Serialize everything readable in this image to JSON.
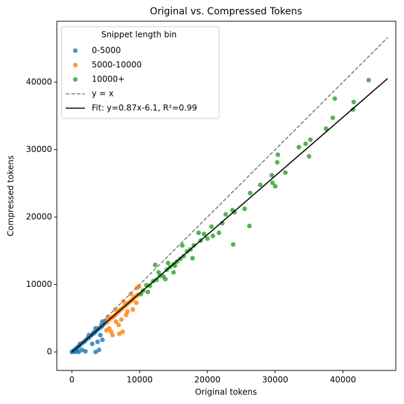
{
  "chart_data": {
    "type": "scatter",
    "title": "Original vs. Compressed Tokens",
    "x_label": "Original tokens",
    "y_label": "Compressed tokens",
    "xlim": [
      -2222,
      47800
    ],
    "ylim": [
      -2740,
      49030
    ],
    "xticks": [
      0,
      10000,
      20000,
      30000,
      40000
    ],
    "yticks": [
      0,
      10000,
      20000,
      30000,
      40000
    ],
    "legend_title": "Snippet length bin",
    "legend_position": "upper left",
    "series": [
      {
        "name": "0-5000",
        "color": "#1f77b4",
        "type": "scatter",
        "x": [
          0,
          100,
          200,
          300,
          500,
          800,
          1000,
          1200,
          1500,
          1800,
          2000,
          2300,
          2500,
          2800,
          3000,
          3300,
          3500,
          3800,
          4000,
          4300,
          4500,
          4800,
          1000,
          1500,
          2000,
          3500,
          4000,
          3000,
          4500,
          4200,
          2500,
          3500,
          4500,
          500,
          800,
          4900,
          1200,
          3800
        ],
        "values": [
          0,
          50,
          150,
          200,
          400,
          700,
          800,
          1000,
          1300,
          1500,
          1700,
          2000,
          2100,
          2400,
          2600,
          2800,
          3000,
          3300,
          3500,
          3700,
          3900,
          4200,
          0,
          300,
          100,
          0,
          300,
          1200,
          1800,
          2500,
          2500,
          3500,
          4500,
          0,
          200,
          4600,
          1200,
          1500
        ]
      },
      {
        "name": "5000-10000",
        "color": "#ff7f0e",
        "type": "scatter",
        "x": [
          5100,
          5200,
          5500,
          5800,
          6000,
          6200,
          6500,
          6800,
          7000,
          7200,
          7500,
          7800,
          8000,
          8200,
          8500,
          8800,
          9000,
          9200,
          9500,
          9800,
          6000,
          7000,
          7500,
          5500,
          6500,
          8000,
          9000,
          9500,
          5300,
          6400,
          7600,
          8700,
          9600,
          9900,
          8200,
          6900,
          5800,
          7300
        ],
        "values": [
          3200,
          4400,
          4800,
          5000,
          5200,
          5300,
          5600,
          5900,
          6100,
          6300,
          6500,
          6800,
          7000,
          7200,
          7400,
          7600,
          7800,
          8100,
          8300,
          8500,
          2500,
          2700,
          3000,
          3500,
          4500,
          5500,
          6300,
          7300,
          5200,
          6300,
          7500,
          8600,
          9500,
          9700,
          6000,
          4000,
          3000,
          4800
        ]
      },
      {
        "name": "10000+",
        "color": "#2ca02c",
        "type": "scatter",
        "x": [
          43800,
          41600,
          41500,
          38800,
          38500,
          37500,
          35200,
          34500,
          33500,
          35000,
          31500,
          30400,
          30300,
          29600,
          29500,
          30000,
          27800,
          26300,
          25500,
          23700,
          24000,
          23800,
          26200,
          22200,
          22700,
          20600,
          21700,
          18700,
          10500,
          11000,
          11500,
          12000,
          12500,
          13000,
          13500,
          14000,
          14500,
          15000,
          15500,
          16000,
          16500,
          17000,
          17500,
          18000,
          19000,
          20000,
          15200,
          16300,
          12300,
          13800,
          15000,
          17800,
          19500,
          20800,
          11200,
          10200,
          12800,
          14200
        ],
        "values": [
          40300,
          37060,
          35940,
          37560,
          34720,
          33100,
          31470,
          30860,
          30360,
          29000,
          26600,
          29240,
          28120,
          25080,
          26200,
          24570,
          24770,
          23550,
          21220,
          21020,
          20710,
          15940,
          18680,
          19090,
          20400,
          18580,
          17660,
          17660,
          9100,
          9900,
          9800,
          10500,
          10700,
          11300,
          11200,
          12200,
          12600,
          13000,
          13400,
          13800,
          14200,
          14900,
          15200,
          15800,
          16500,
          16800,
          12800,
          15800,
          12900,
          10800,
          11800,
          13900,
          17500,
          17200,
          8900,
          8600,
          11800,
          13200
        ]
      },
      {
        "name": "y = x",
        "color": "#808080",
        "type": "line",
        "dashed": true,
        "x": [
          0,
          46600
        ],
        "values": [
          0,
          46600
        ]
      },
      {
        "name": "Fit: y=0.87x-6.1, R²=0.99",
        "color": "#000000",
        "type": "line",
        "dashed": false,
        "x": [
          0,
          46600
        ],
        "values": [
          -6.1,
          40536
        ]
      }
    ]
  }
}
